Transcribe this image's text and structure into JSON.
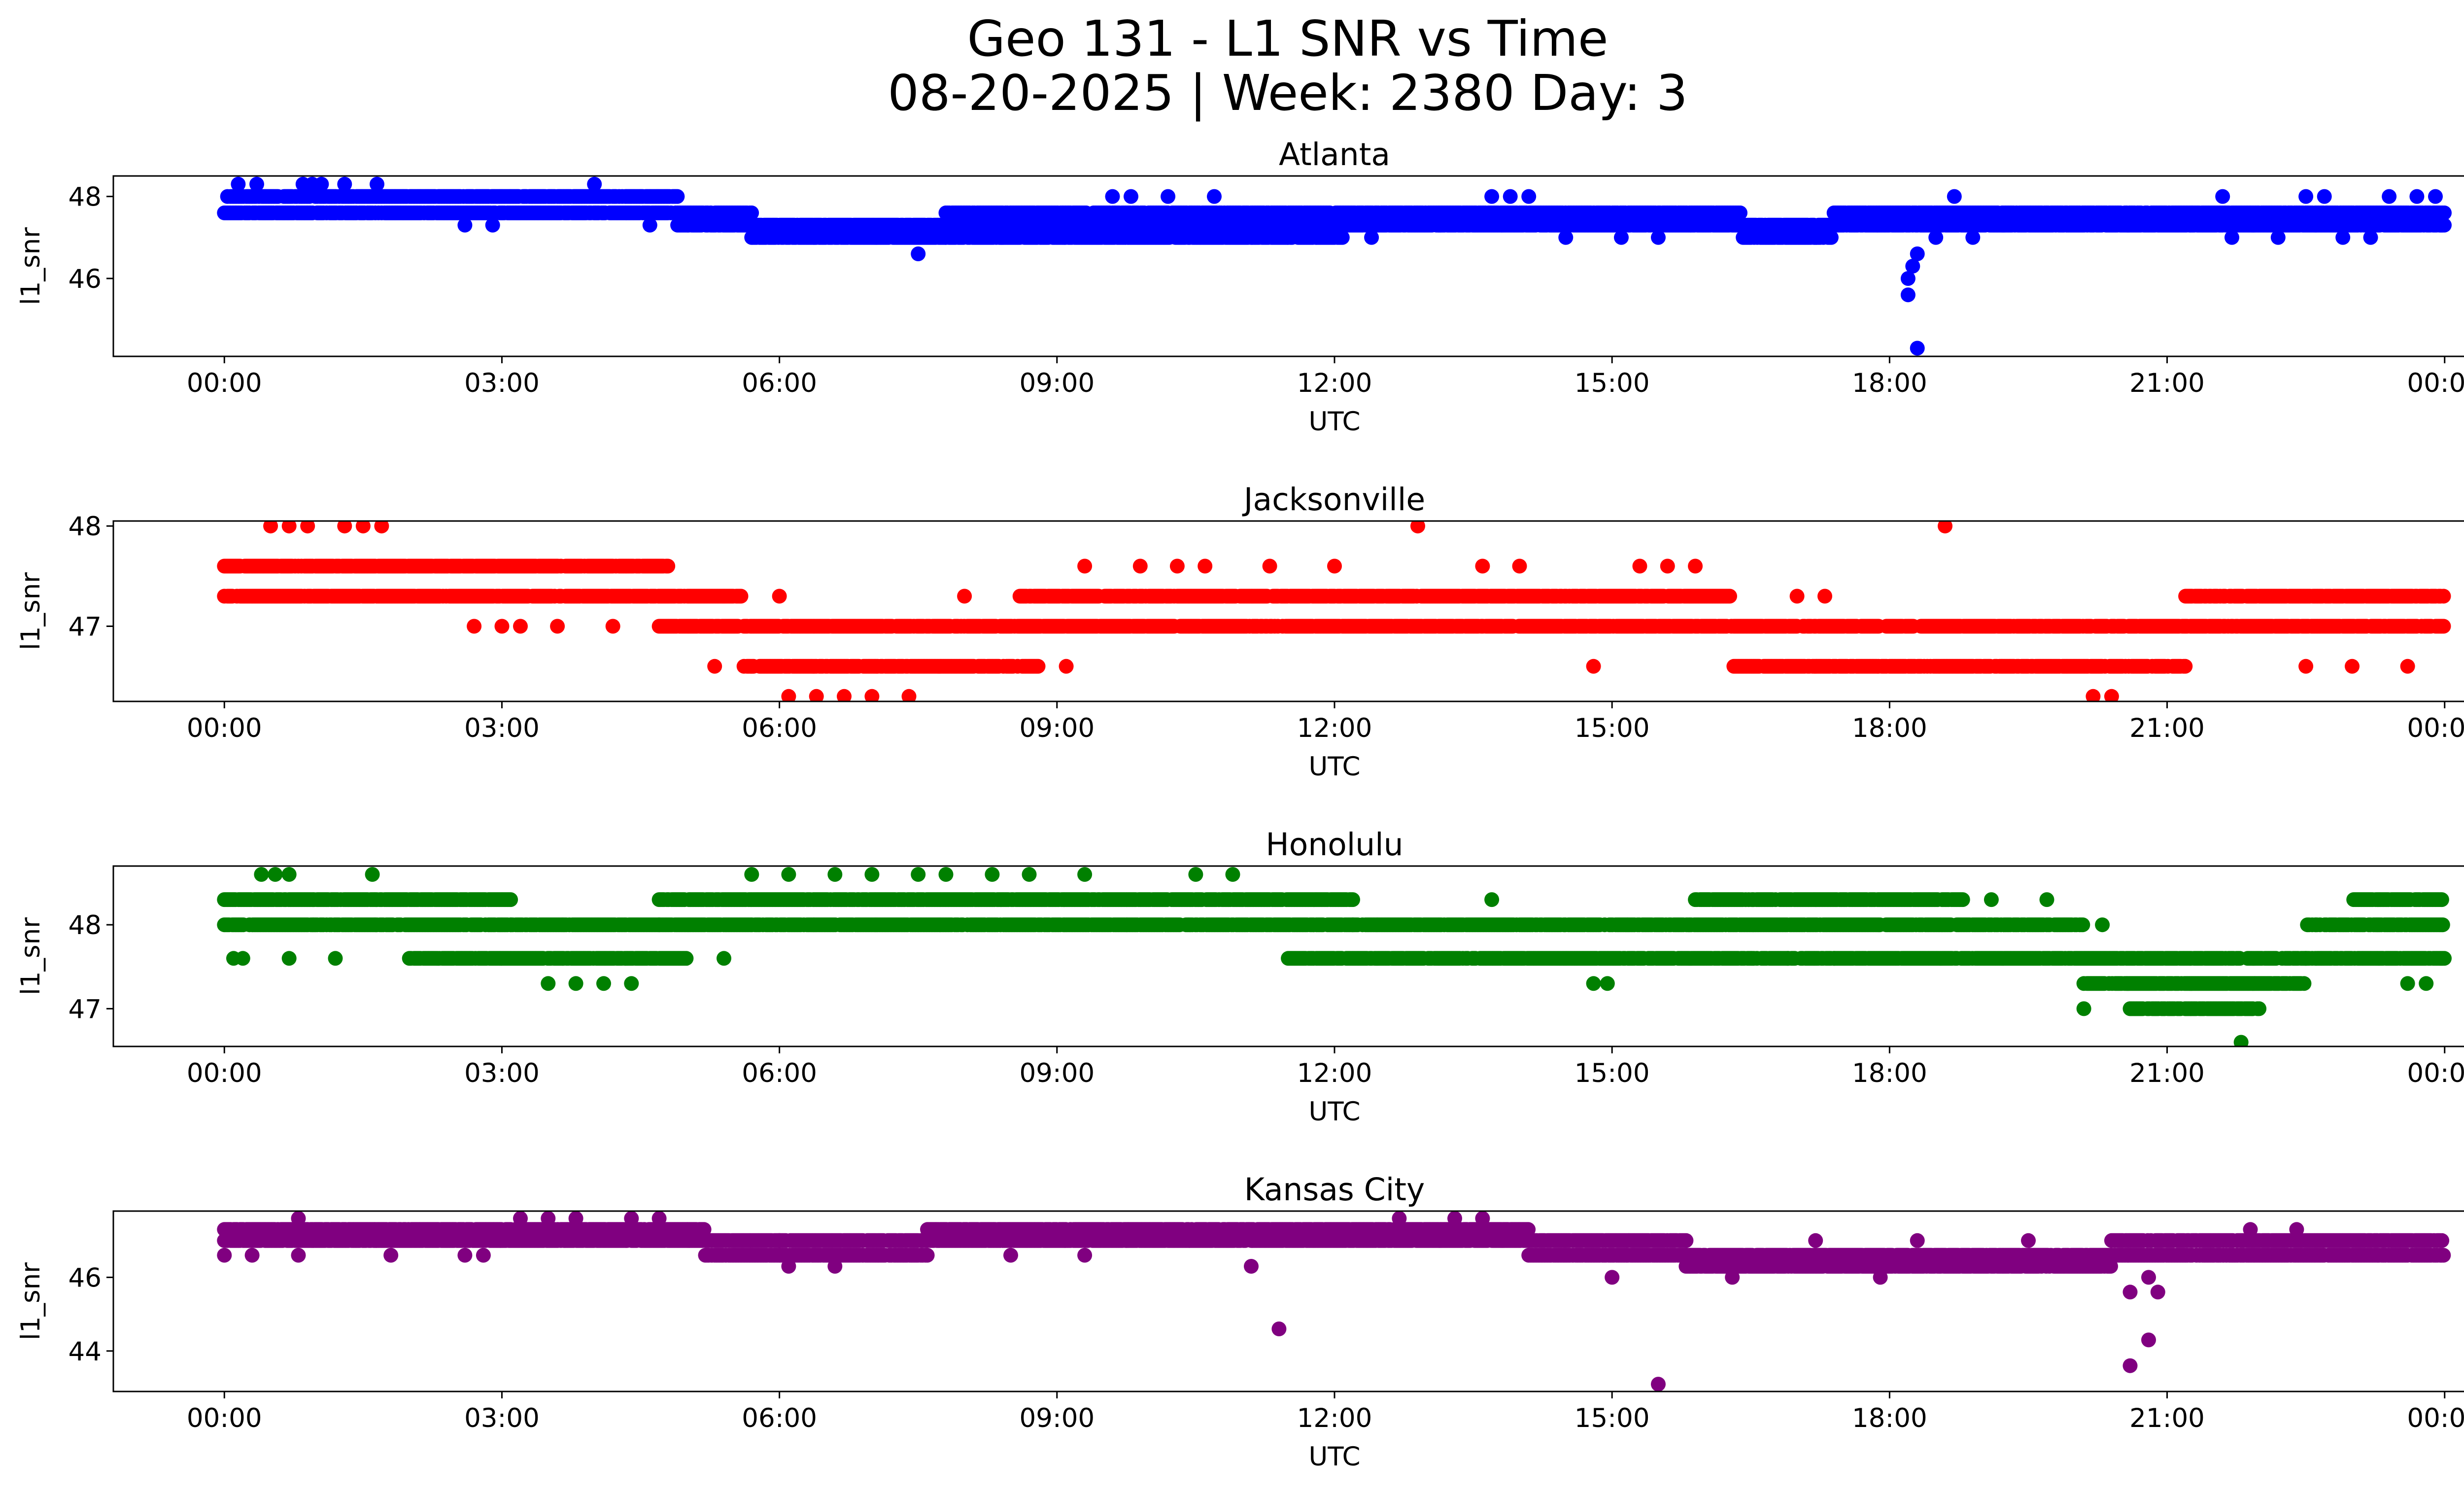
{
  "chart_data": {
    "type": "scatter",
    "title_line1": "Geo 131 - L1 SNR vs Time",
    "title_line2": "08-20-2025 | Week: 2380 Day: 3",
    "xlabel": "UTC",
    "ylabel": "l1_snr",
    "x_ticks": [
      "00:00",
      "03:00",
      "06:00",
      "09:00",
      "12:00",
      "15:00",
      "18:00",
      "21:00",
      "00:00"
    ],
    "x_range_hours": [
      -1.2,
      25.2
    ],
    "panels": [
      {
        "title": "Atlanta",
        "color": "#0000ff",
        "ylim": [
          44.1,
          48.5
        ],
        "yticks": [
          46,
          48
        ],
        "baseline": [
          {
            "from": 0.0,
            "to": 4.9,
            "levels": [
              47.6,
              48.0
            ]
          },
          {
            "from": 4.9,
            "to": 5.7,
            "levels": [
              47.3,
              47.6
            ]
          },
          {
            "from": 5.7,
            "to": 7.8,
            "levels": [
              47.0,
              47.3
            ]
          },
          {
            "from": 7.8,
            "to": 12.1,
            "levels": [
              47.0,
              47.3,
              47.6
            ]
          },
          {
            "from": 12.1,
            "to": 16.4,
            "levels": [
              47.3,
              47.6
            ]
          },
          {
            "from": 16.4,
            "to": 17.4,
            "levels": [
              47.0,
              47.3
            ]
          },
          {
            "from": 17.4,
            "to": 24.0,
            "levels": [
              47.3,
              47.6
            ]
          }
        ],
        "points": [
          {
            "t": 0.15,
            "v": 48.3
          },
          {
            "t": 0.35,
            "v": 48.3
          },
          {
            "t": 0.85,
            "v": 48.3
          },
          {
            "t": 0.95,
            "v": 48.3
          },
          {
            "t": 1.05,
            "v": 48.3
          },
          {
            "t": 1.3,
            "v": 48.3
          },
          {
            "t": 1.65,
            "v": 48.3
          },
          {
            "t": 4.0,
            "v": 48.3
          },
          {
            "t": 2.6,
            "v": 47.3
          },
          {
            "t": 2.9,
            "v": 47.3
          },
          {
            "t": 4.6,
            "v": 47.3
          },
          {
            "t": 7.5,
            "v": 46.6
          },
          {
            "t": 9.6,
            "v": 48.0
          },
          {
            "t": 9.8,
            "v": 48.0
          },
          {
            "t": 10.2,
            "v": 48.0
          },
          {
            "t": 10.7,
            "v": 48.0
          },
          {
            "t": 11.5,
            "v": 47.0
          },
          {
            "t": 11.8,
            "v": 47.0
          },
          {
            "t": 12.4,
            "v": 47.0
          },
          {
            "t": 13.7,
            "v": 48.0
          },
          {
            "t": 13.9,
            "v": 48.0
          },
          {
            "t": 14.1,
            "v": 48.0
          },
          {
            "t": 14.5,
            "v": 47.0
          },
          {
            "t": 15.1,
            "v": 47.0
          },
          {
            "t": 15.5,
            "v": 47.0
          },
          {
            "t": 18.3,
            "v": 46.6
          },
          {
            "t": 18.25,
            "v": 46.3
          },
          {
            "t": 18.2,
            "v": 46.0
          },
          {
            "t": 18.2,
            "v": 45.6
          },
          {
            "t": 18.3,
            "v": 44.3
          },
          {
            "t": 18.7,
            "v": 48.0
          },
          {
            "t": 18.5,
            "v": 47.0
          },
          {
            "t": 18.9,
            "v": 47.0
          },
          {
            "t": 21.6,
            "v": 48.0
          },
          {
            "t": 21.7,
            "v": 47.0
          },
          {
            "t": 22.2,
            "v": 47.0
          },
          {
            "t": 22.5,
            "v": 48.0
          },
          {
            "t": 22.7,
            "v": 48.0
          },
          {
            "t": 23.4,
            "v": 48.0
          },
          {
            "t": 23.7,
            "v": 48.0
          },
          {
            "t": 23.9,
            "v": 48.0
          },
          {
            "t": 22.9,
            "v": 47.0
          },
          {
            "t": 23.2,
            "v": 47.0
          }
        ]
      },
      {
        "title": "Jacksonville",
        "color": "#ff0000",
        "ylim": [
          46.25,
          48.05
        ],
        "yticks": [
          47,
          48
        ],
        "baseline": [
          {
            "from": 0.0,
            "to": 4.8,
            "levels": [
              47.3,
              47.6
            ]
          },
          {
            "from": 4.7,
            "to": 5.6,
            "levels": [
              47.0,
              47.3
            ]
          },
          {
            "from": 5.6,
            "to": 8.8,
            "levels": [
              46.6,
              47.0
            ]
          },
          {
            "from": 8.6,
            "to": 12.6,
            "levels": [
              47.0,
              47.3
            ]
          },
          {
            "from": 12.6,
            "to": 16.3,
            "levels": [
              47.0,
              47.3
            ]
          },
          {
            "from": 16.3,
            "to": 21.2,
            "levels": [
              46.6,
              47.0
            ]
          },
          {
            "from": 21.2,
            "to": 24.0,
            "levels": [
              47.0,
              47.3
            ]
          }
        ],
        "points": [
          {
            "t": 0.5,
            "v": 48.0
          },
          {
            "t": 0.7,
            "v": 48.0
          },
          {
            "t": 0.9,
            "v": 48.0
          },
          {
            "t": 1.3,
            "v": 48.0
          },
          {
            "t": 1.5,
            "v": 48.0
          },
          {
            "t": 1.7,
            "v": 48.0
          },
          {
            "t": 2.7,
            "v": 47.0
          },
          {
            "t": 3.0,
            "v": 47.0
          },
          {
            "t": 3.2,
            "v": 47.0
          },
          {
            "t": 3.6,
            "v": 47.0
          },
          {
            "t": 4.2,
            "v": 47.0
          },
          {
            "t": 5.3,
            "v": 46.6
          },
          {
            "t": 5.4,
            "v": 47.3
          },
          {
            "t": 6.0,
            "v": 47.3
          },
          {
            "t": 6.1,
            "v": 46.3
          },
          {
            "t": 6.4,
            "v": 46.3
          },
          {
            "t": 6.7,
            "v": 46.3
          },
          {
            "t": 7.0,
            "v": 46.3
          },
          {
            "t": 7.4,
            "v": 46.3
          },
          {
            "t": 8.0,
            "v": 47.3
          },
          {
            "t": 9.1,
            "v": 46.6
          },
          {
            "t": 9.3,
            "v": 47.6
          },
          {
            "t": 9.9,
            "v": 47.6
          },
          {
            "t": 10.3,
            "v": 47.6
          },
          {
            "t": 10.6,
            "v": 47.6
          },
          {
            "t": 11.3,
            "v": 47.6
          },
          {
            "t": 12.0,
            "v": 47.6
          },
          {
            "t": 12.9,
            "v": 48.0
          },
          {
            "t": 13.6,
            "v": 47.6
          },
          {
            "t": 14.0,
            "v": 47.6
          },
          {
            "t": 14.8,
            "v": 46.6
          },
          {
            "t": 15.3,
            "v": 47.6
          },
          {
            "t": 15.6,
            "v": 47.6
          },
          {
            "t": 15.9,
            "v": 47.6
          },
          {
            "t": 17.0,
            "v": 47.3
          },
          {
            "t": 17.3,
            "v": 47.3
          },
          {
            "t": 18.6,
            "v": 48.0
          },
          {
            "t": 20.2,
            "v": 46.3
          },
          {
            "t": 20.4,
            "v": 46.3
          },
          {
            "t": 22.5,
            "v": 46.6
          },
          {
            "t": 23.0,
            "v": 46.6
          },
          {
            "t": 23.6,
            "v": 46.6
          }
        ]
      },
      {
        "title": "Honolulu",
        "color": "#008000",
        "ylim": [
          46.55,
          48.7
        ],
        "yticks": [
          47,
          48
        ],
        "baseline": [
          {
            "from": 0.0,
            "to": 3.1,
            "levels": [
              48.0,
              48.3
            ]
          },
          {
            "from": 2.0,
            "to": 5.0,
            "levels": [
              47.6
            ]
          },
          {
            "from": 3.1,
            "to": 4.7,
            "levels": [
              48.0
            ]
          },
          {
            "from": 4.7,
            "to": 12.2,
            "levels": [
              48.0,
              48.3
            ]
          },
          {
            "from": 12.2,
            "to": 20.1,
            "levels": [
              48.0
            ]
          },
          {
            "from": 15.9,
            "to": 18.8,
            "levels": [
              48.3
            ]
          },
          {
            "from": 11.5,
            "to": 22.5,
            "levels": [
              47.6
            ]
          },
          {
            "from": 20.1,
            "to": 22.5,
            "levels": [
              47.3
            ]
          },
          {
            "from": 20.6,
            "to": 22.0,
            "levels": [
              47.0
            ]
          },
          {
            "from": 22.5,
            "to": 24.0,
            "levels": [
              47.6,
              48.0
            ]
          },
          {
            "from": 23.0,
            "to": 24.0,
            "levels": [
              48.3
            ]
          }
        ],
        "points": [
          {
            "t": 0.4,
            "v": 48.6
          },
          {
            "t": 0.55,
            "v": 48.6
          },
          {
            "t": 0.7,
            "v": 48.6
          },
          {
            "t": 1.6,
            "v": 48.6
          },
          {
            "t": 0.1,
            "v": 47.6
          },
          {
            "t": 0.2,
            "v": 47.6
          },
          {
            "t": 0.7,
            "v": 47.6
          },
          {
            "t": 1.2,
            "v": 47.6
          },
          {
            "t": 3.5,
            "v": 47.3
          },
          {
            "t": 3.8,
            "v": 47.3
          },
          {
            "t": 4.1,
            "v": 47.3
          },
          {
            "t": 4.4,
            "v": 47.3
          },
          {
            "t": 5.4,
            "v": 47.6
          },
          {
            "t": 5.7,
            "v": 48.6
          },
          {
            "t": 6.1,
            "v": 48.6
          },
          {
            "t": 6.6,
            "v": 48.6
          },
          {
            "t": 7.0,
            "v": 48.6
          },
          {
            "t": 7.5,
            "v": 48.6
          },
          {
            "t": 7.8,
            "v": 48.6
          },
          {
            "t": 8.3,
            "v": 48.6
          },
          {
            "t": 8.7,
            "v": 48.6
          },
          {
            "t": 9.3,
            "v": 48.6
          },
          {
            "t": 10.5,
            "v": 48.6
          },
          {
            "t": 10.9,
            "v": 48.6
          },
          {
            "t": 13.7,
            "v": 48.3
          },
          {
            "t": 14.8,
            "v": 47.3
          },
          {
            "t": 14.95,
            "v": 47.3
          },
          {
            "t": 16.9,
            "v": 47.6
          },
          {
            "t": 17.4,
            "v": 47.6
          },
          {
            "t": 19.1,
            "v": 48.3
          },
          {
            "t": 19.7,
            "v": 48.3
          },
          {
            "t": 20.3,
            "v": 48.0
          },
          {
            "t": 20.1,
            "v": 47.0
          },
          {
            "t": 21.8,
            "v": 46.6
          },
          {
            "t": 23.6,
            "v": 47.3
          },
          {
            "t": 23.8,
            "v": 47.3
          }
        ]
      },
      {
        "title": "Kansas City",
        "color": "#800080",
        "ylim": [
          42.9,
          47.8
        ],
        "yticks": [
          44,
          46
        ],
        "baseline": [
          {
            "from": 0.0,
            "to": 5.2,
            "levels": [
              47.0,
              47.3
            ]
          },
          {
            "from": 5.2,
            "to": 6.0,
            "levels": [
              46.6,
              47.0
            ]
          },
          {
            "from": 6.0,
            "to": 7.6,
            "levels": [
              46.6,
              47.0
            ]
          },
          {
            "from": 7.6,
            "to": 14.1,
            "levels": [
              47.0,
              47.3
            ]
          },
          {
            "from": 14.1,
            "to": 15.8,
            "levels": [
              46.6,
              47.0
            ]
          },
          {
            "from": 15.8,
            "to": 20.4,
            "levels": [
              46.3,
              46.6
            ]
          },
          {
            "from": 20.4,
            "to": 24.0,
            "levels": [
              46.6,
              47.0
            ]
          }
        ],
        "points": [
          {
            "t": 0.0,
            "v": 46.6
          },
          {
            "t": 0.3,
            "v": 46.6
          },
          {
            "t": 0.8,
            "v": 46.6
          },
          {
            "t": 0.8,
            "v": 47.6
          },
          {
            "t": 1.8,
            "v": 46.6
          },
          {
            "t": 2.6,
            "v": 46.6
          },
          {
            "t": 2.8,
            "v": 46.6
          },
          {
            "t": 3.2,
            "v": 47.6
          },
          {
            "t": 3.5,
            "v": 47.6
          },
          {
            "t": 3.8,
            "v": 47.6
          },
          {
            "t": 4.4,
            "v": 47.6
          },
          {
            "t": 4.7,
            "v": 47.6
          },
          {
            "t": 6.1,
            "v": 46.3
          },
          {
            "t": 6.6,
            "v": 46.3
          },
          {
            "t": 8.5,
            "v": 46.6
          },
          {
            "t": 9.3,
            "v": 46.6
          },
          {
            "t": 11.1,
            "v": 46.3
          },
          {
            "t": 11.4,
            "v": 44.6
          },
          {
            "t": 12.7,
            "v": 47.6
          },
          {
            "t": 13.3,
            "v": 47.6
          },
          {
            "t": 13.6,
            "v": 47.6
          },
          {
            "t": 15.5,
            "v": 43.1
          },
          {
            "t": 15.0,
            "v": 46.0
          },
          {
            "t": 16.3,
            "v": 46.0
          },
          {
            "t": 17.9,
            "v": 46.0
          },
          {
            "t": 20.6,
            "v": 43.6
          },
          {
            "t": 20.6,
            "v": 45.6
          },
          {
            "t": 20.8,
            "v": 44.3
          },
          {
            "t": 20.9,
            "v": 45.6
          },
          {
            "t": 20.8,
            "v": 46.0
          },
          {
            "t": 21.9,
            "v": 47.3
          },
          {
            "t": 22.4,
            "v": 47.3
          },
          {
            "t": 17.2,
            "v": 47.0
          },
          {
            "t": 18.3,
            "v": 47.0
          },
          {
            "t": 19.5,
            "v": 47.0
          }
        ]
      }
    ]
  }
}
